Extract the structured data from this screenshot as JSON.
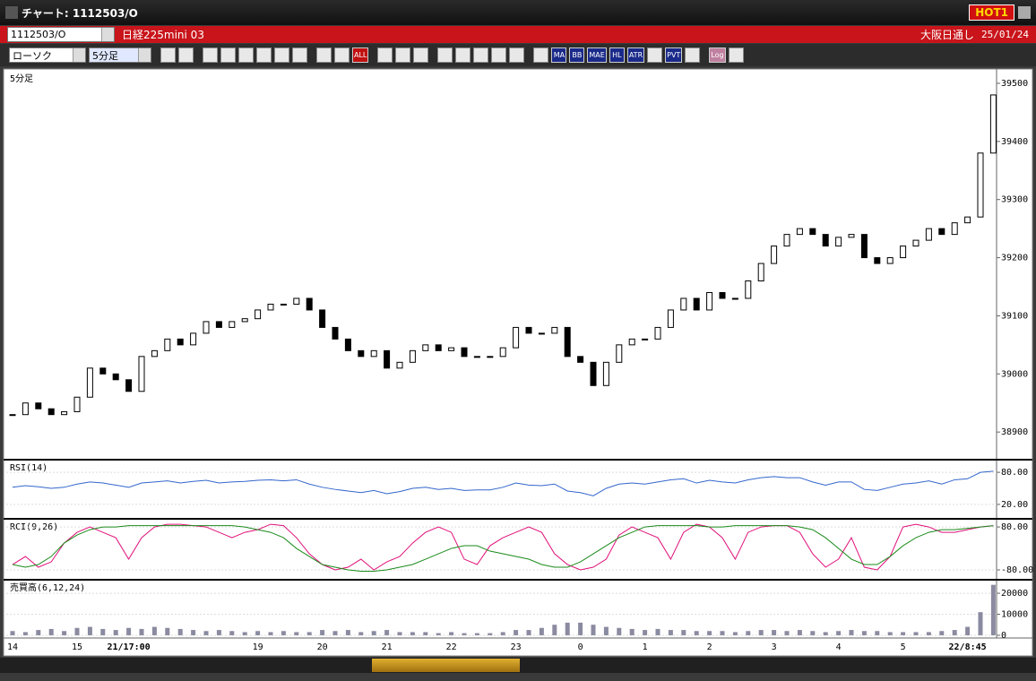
{
  "window": {
    "title": "チャート: 1112503/O",
    "hot_label": "HOT1",
    "symbol": "1112503/O",
    "instrument": "日経225mini 03",
    "exchange": "大阪日通し",
    "date": "25/01/24",
    "chart_type": "ローソク",
    "period": "5分足",
    "toolbar_buttons": [
      "ALL",
      "MA",
      "BB",
      "MAE",
      "HL",
      "ATR",
      "PVT",
      "Log"
    ]
  },
  "chart_data": [
    {
      "type": "candlestick",
      "title": "5分足",
      "up_color": "#ffffff",
      "down_color": "#000000",
      "categories": [
        "14",
        null,
        null,
        null,
        null,
        "15",
        null,
        null,
        null,
        "21/17:00",
        null,
        null,
        null,
        null,
        null,
        null,
        null,
        null,
        null,
        "19",
        null,
        null,
        null,
        null,
        "20",
        null,
        null,
        null,
        null,
        "21",
        null,
        null,
        null,
        null,
        "22",
        null,
        null,
        null,
        null,
        "23",
        null,
        null,
        null,
        null,
        "0",
        null,
        null,
        null,
        null,
        "1",
        null,
        null,
        null,
        null,
        "2",
        null,
        null,
        null,
        null,
        "3",
        null,
        null,
        null,
        null,
        "4",
        null,
        null,
        null,
        null,
        "5",
        null,
        null,
        null,
        null,
        "22/8:45",
        null,
        null
      ],
      "values": [
        38930,
        38950,
        38940,
        38930,
        38935,
        38960,
        39010,
        39000,
        38990,
        38970,
        39030,
        39040,
        39060,
        39050,
        39070,
        39090,
        39080,
        39090,
        39095,
        39110,
        39120,
        39120,
        39130,
        39110,
        39080,
        39060,
        39040,
        39030,
        39040,
        39010,
        39020,
        39040,
        39050,
        39040,
        39045,
        39030,
        39030,
        39030,
        39045,
        39080,
        39070,
        39070,
        39080,
        39030,
        39020,
        38980,
        39020,
        39050,
        39060,
        39060,
        39080,
        39110,
        39130,
        39110,
        39140,
        39130,
        39130,
        39160,
        39190,
        39220,
        39240,
        39250,
        39240,
        39220,
        39235,
        39240,
        39200,
        39190,
        39200,
        39220,
        39230,
        39250,
        39240,
        39260,
        39270,
        39380,
        39480
      ],
      "ylim": [
        38854,
        39520
      ],
      "yticks": [
        38900,
        39000,
        39100,
        39200,
        39300,
        39400,
        39500
      ]
    },
    {
      "type": "line",
      "title": "RSI(14)",
      "series": [
        {
          "color": "#3366cc",
          "values": [
            52,
            55,
            53,
            50,
            52,
            58,
            62,
            60,
            56,
            52,
            60,
            62,
            64,
            60,
            63,
            65,
            60,
            62,
            63,
            65,
            66,
            64,
            66,
            58,
            52,
            48,
            45,
            42,
            46,
            40,
            44,
            50,
            52,
            48,
            50,
            46,
            47,
            47,
            52,
            60,
            56,
            55,
            58,
            45,
            42,
            36,
            50,
            58,
            60,
            58,
            62,
            66,
            68,
            60,
            65,
            62,
            60,
            66,
            70,
            72,
            70,
            70,
            62,
            56,
            62,
            62,
            48,
            46,
            52,
            58,
            60,
            64,
            58,
            66,
            68,
            80,
            82
          ]
        }
      ],
      "ylim": [
        -2,
        102
      ],
      "yticks": [
        {
          "value": 20,
          "label": "20.00"
        },
        {
          "value": 80,
          "label": "80.00"
        }
      ]
    },
    {
      "type": "line",
      "title": "RCI(9,26)",
      "series": [
        {
          "color": "#e0107a",
          "values": [
            -60,
            -30,
            -70,
            -50,
            20,
            60,
            80,
            60,
            40,
            -40,
            40,
            80,
            90,
            90,
            85,
            80,
            60,
            40,
            60,
            70,
            90,
            85,
            40,
            -20,
            -60,
            -80,
            -70,
            -40,
            -80,
            -50,
            -30,
            20,
            60,
            80,
            60,
            -40,
            -60,
            10,
            40,
            60,
            80,
            60,
            -20,
            -60,
            -80,
            -70,
            -40,
            50,
            80,
            60,
            40,
            -40,
            60,
            90,
            80,
            40,
            -40,
            60,
            80,
            85,
            85,
            60,
            -20,
            -70,
            -40,
            40,
            -70,
            -80,
            -30,
            80,
            90,
            80,
            60,
            60,
            70,
            80,
            85
          ]
        },
        {
          "color": "#1a8a1a",
          "values": [
            -60,
            -70,
            -60,
            -30,
            20,
            50,
            70,
            80,
            80,
            85,
            85,
            85,
            85,
            85,
            85,
            85,
            85,
            85,
            80,
            70,
            60,
            40,
            0,
            -30,
            -60,
            -70,
            -80,
            -85,
            -85,
            -80,
            -70,
            -60,
            -40,
            -20,
            0,
            10,
            10,
            -10,
            -20,
            -30,
            -40,
            -60,
            -70,
            -70,
            -50,
            -20,
            10,
            40,
            60,
            80,
            85,
            85,
            85,
            85,
            80,
            80,
            85,
            85,
            85,
            85,
            85,
            80,
            70,
            40,
            0,
            -40,
            -60,
            -60,
            -30,
            10,
            40,
            60,
            70,
            70,
            75,
            80,
            85
          ]
        }
      ],
      "ylim": [
        -110,
        107
      ],
      "yticks": [
        {
          "value": -80,
          "label": "-80.00"
        },
        {
          "value": 80,
          "label": "80.00"
        }
      ]
    },
    {
      "type": "bar",
      "title": "売買高(6,12,24)",
      "color": "#8a8aa0",
      "values": [
        2000,
        1500,
        2500,
        3000,
        2000,
        3500,
        4000,
        3000,
        2500,
        3500,
        3000,
        4000,
        3500,
        3000,
        2500,
        2000,
        2500,
        2000,
        1500,
        2000,
        1500,
        2000,
        1500,
        1500,
        2500,
        2000,
        2500,
        1500,
        2000,
        2500,
        1500,
        1500,
        1500,
        1000,
        1500,
        1000,
        1000,
        1000,
        1500,
        2500,
        2500,
        3500,
        5000,
        6000,
        6000,
        5000,
        4000,
        3500,
        3000,
        2500,
        3000,
        2500,
        2500,
        2000,
        2000,
        2000,
        1500,
        2000,
        2500,
        2500,
        2000,
        2500,
        2000,
        1500,
        2000,
        2500,
        2000,
        2000,
        1500,
        1500,
        1500,
        1500,
        2000,
        2500,
        4000,
        11000,
        24000
      ],
      "ylim": [
        -1300,
        26000
      ],
      "yticks": [
        0,
        10000,
        20000
      ]
    }
  ]
}
